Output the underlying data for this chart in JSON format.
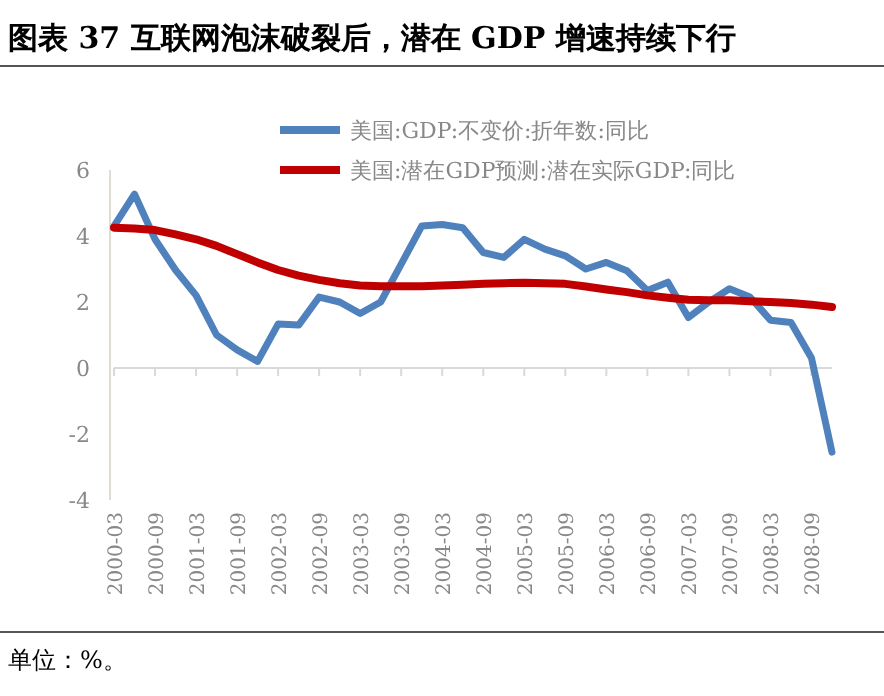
{
  "chart_data": {
    "type": "line",
    "title": "图表 37  互联网泡沫破裂后，潜在 GDP 增速持续下行",
    "categories": [
      "2000-03",
      null,
      "2000-09",
      null,
      "2001-03",
      null,
      "2001-09",
      null,
      "2002-03",
      null,
      "2002-09",
      null,
      "2003-03",
      null,
      "2003-09",
      null,
      "2004-03",
      null,
      "2004-09",
      null,
      "2005-03",
      null,
      "2005-09",
      null,
      "2006-03",
      null,
      "2006-09",
      null,
      "2007-03",
      null,
      "2007-09",
      null,
      "2008-03",
      null,
      "2008-09",
      null
    ],
    "series": [
      {
        "name": "美国:GDP:不变价:折年数:同比",
        "color": "#4f81bd",
        "values": [
          4.3,
          5.27,
          3.9,
          2.97,
          2.2,
          1.0,
          0.55,
          0.2,
          1.33,
          1.3,
          2.15,
          2.0,
          1.65,
          2.0,
          3.15,
          4.3,
          4.35,
          4.25,
          3.5,
          3.35,
          3.9,
          3.6,
          3.4,
          3.0,
          3.2,
          2.95,
          2.35,
          2.6,
          1.53,
          2.0,
          2.4,
          2.15,
          1.45,
          1.38,
          0.3,
          -2.55
        ]
      },
      {
        "name": "美国:潜在GDP预测:潜在实际GDP:同比",
        "color": "#c00000",
        "values": [
          4.25,
          4.23,
          4.18,
          4.05,
          3.9,
          3.7,
          3.45,
          3.2,
          2.97,
          2.8,
          2.67,
          2.57,
          2.5,
          2.48,
          2.48,
          2.48,
          2.5,
          2.52,
          2.55,
          2.57,
          2.58,
          2.57,
          2.55,
          2.47,
          2.38,
          2.3,
          2.2,
          2.13,
          2.07,
          2.05,
          2.05,
          2.02,
          2.0,
          1.97,
          1.92,
          1.85
        ]
      }
    ],
    "ylim": [
      -4,
      6
    ],
    "yticks": [
      -4,
      -2,
      0,
      2,
      4,
      6
    ],
    "legend": "top",
    "annotations": [
      "单位：%。"
    ]
  }
}
